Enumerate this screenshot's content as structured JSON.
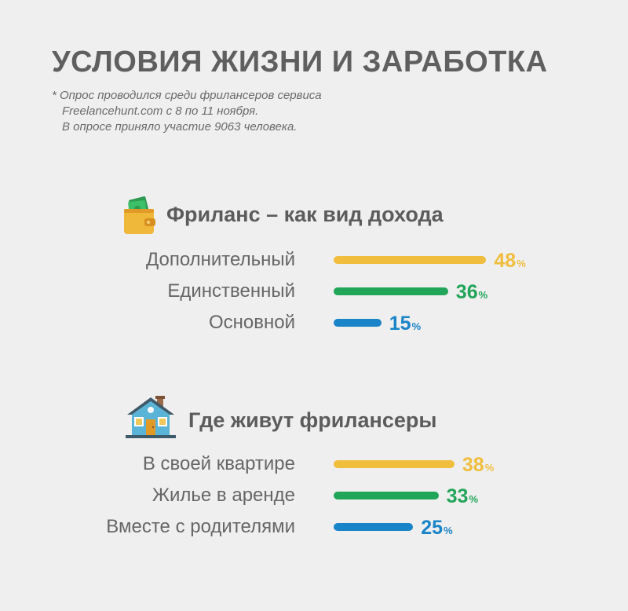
{
  "title": "УСЛОВИЯ ЖИЗНИ И ЗАРАБОТКА",
  "note": {
    "line1": "* Опрос проводился среди фрилансеров сервиса",
    "line2": "Freelancehunt.com с 8 по 11 ноября.",
    "line3": "В опросе приняло участие 9063 человека."
  },
  "colors": {
    "yellow": "#f0be3c",
    "green": "#21a558",
    "blue": "#1a84c8"
  },
  "percent_sign": "%",
  "chart_data": [
    {
      "type": "bar",
      "orientation": "horizontal",
      "icon": "wallet-icon",
      "title": "Фриланс – как вид дохода",
      "categories": [
        "Дополнительный",
        "Единственный",
        "Основной"
      ],
      "values": [
        48,
        36,
        15
      ],
      "colors": [
        "#f0be3c",
        "#21a558",
        "#1a84c8"
      ]
    },
    {
      "type": "bar",
      "orientation": "horizontal",
      "icon": "house-icon",
      "title": "Где живут фрилансеры",
      "categories": [
        "В своей квартире",
        "Жилье в аренде",
        "Вместе с родителями"
      ],
      "values": [
        38,
        33,
        25
      ],
      "colors": [
        "#f0be3c",
        "#21a558",
        "#1a84c8"
      ]
    }
  ]
}
